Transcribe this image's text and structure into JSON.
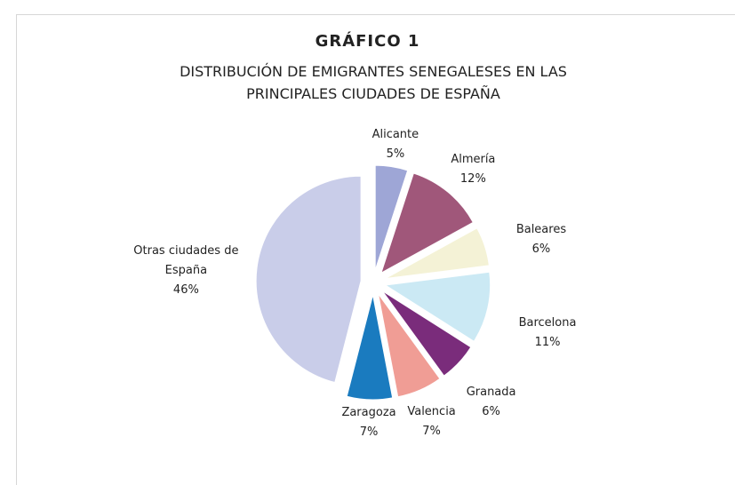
{
  "chart_data": {
    "type": "pie",
    "title": "GRÁFICO 1",
    "subtitle": "DISTRIBUCIÓN DE EMIGRANTES SENEGALESES EN LAS PRINCIPALES CIUDADES DE ESPAÑA",
    "categories": [
      "Alicante",
      "Almería",
      "Baleares",
      "Barcelona",
      "Granada",
      "Valencia",
      "Zaragoza",
      "Otras ciudades de España"
    ],
    "values": [
      5,
      12,
      6,
      11,
      6,
      7,
      7,
      46
    ],
    "value_labels": [
      "5%",
      "12%",
      "6%",
      "11%",
      "6%",
      "7%",
      "7%",
      "46%"
    ],
    "colors": [
      "#9ea6d6",
      "#a0577a",
      "#f4f2d6",
      "#cbe9f4",
      "#7a2c7b",
      "#f09d95",
      "#1a7bbf",
      "#c9cde9"
    ]
  }
}
